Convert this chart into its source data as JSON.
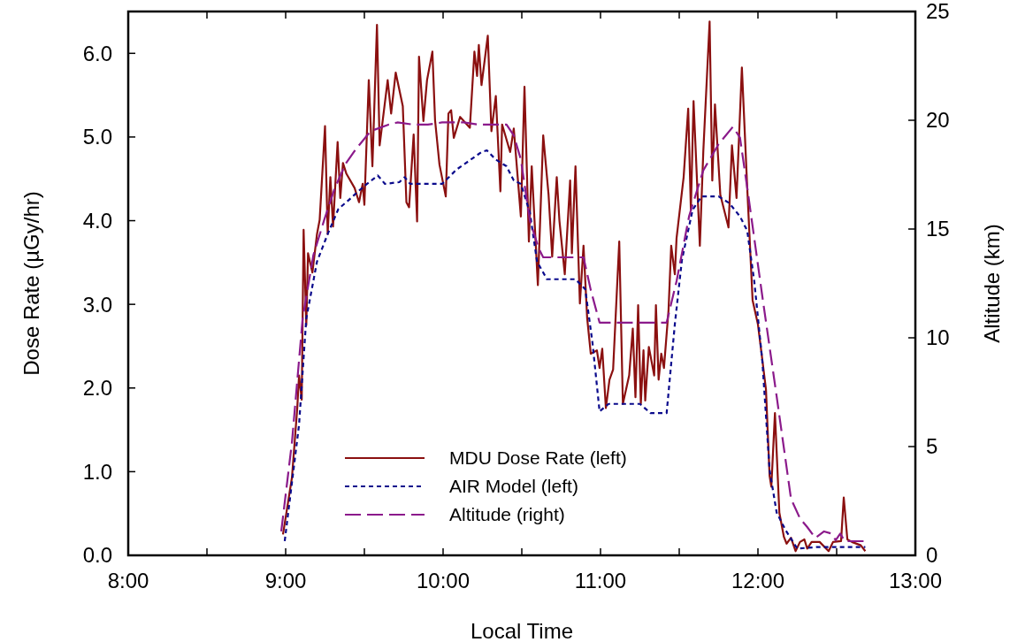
{
  "chart_data": {
    "type": "line",
    "xlabel": "Local Time",
    "ylabel": "Dose Rate (µGy/hr)",
    "y2label": "Altitude (km)",
    "xlim": [
      8,
      13
    ],
    "xticks": [
      {
        "value": 8,
        "label": "8:00"
      },
      {
        "value": 8.5,
        "label": null
      },
      {
        "value": 9,
        "label": "9:00"
      },
      {
        "value": 9.5,
        "label": null
      },
      {
        "value": 10,
        "label": "10:00"
      },
      {
        "value": 10.5,
        "label": null
      },
      {
        "value": 11,
        "label": "11:00"
      },
      {
        "value": 11.5,
        "label": null
      },
      {
        "value": 12,
        "label": "12:00"
      },
      {
        "value": 12.5,
        "label": null
      },
      {
        "value": 13,
        "label": "13:00"
      }
    ],
    "ylim": [
      0,
      6.5
    ],
    "yticks": [
      {
        "value": 0,
        "label": "0.0"
      },
      {
        "value": 1,
        "label": "1.0"
      },
      {
        "value": 2,
        "label": "2.0"
      },
      {
        "value": 3,
        "label": "3.0"
      },
      {
        "value": 4,
        "label": "4.0"
      },
      {
        "value": 5,
        "label": "5.0"
      },
      {
        "value": 6,
        "label": "6.0"
      }
    ],
    "y2lim": [
      0,
      25
    ],
    "y2ticks": [
      0,
      5,
      10,
      15,
      20,
      25
    ],
    "legend": "bottom",
    "grid": false,
    "marker": "none",
    "series": [
      {
        "name": "MDU Dose Rate (left)",
        "color": "#8b1010",
        "line_style": "solid",
        "x": [
          8.983,
          9.04,
          9.074,
          9.085,
          9.102,
          9.114,
          9.131,
          9.142,
          9.17,
          9.199,
          9.216,
          9.25,
          9.267,
          9.284,
          9.301,
          9.33,
          9.347,
          9.364,
          9.386,
          9.438,
          9.466,
          9.489,
          9.5,
          9.528,
          9.551,
          9.58,
          9.597,
          9.648,
          9.67,
          9.699,
          9.744,
          9.767,
          9.784,
          9.813,
          9.835,
          9.847,
          9.875,
          9.898,
          9.932,
          9.949,
          9.977,
          10.017,
          10.034,
          10.051,
          10.068,
          10.108,
          10.17,
          10.199,
          10.216,
          10.227,
          10.244,
          10.284,
          10.307,
          10.335,
          10.364,
          10.375,
          10.426,
          10.449,
          10.494,
          10.517,
          10.545,
          10.563,
          10.602,
          10.636,
          10.67,
          10.693,
          10.722,
          10.739,
          10.773,
          10.807,
          10.818,
          10.841,
          10.869,
          10.892,
          10.915,
          10.938,
          10.977,
          10.994,
          11.011,
          11.034,
          11.057,
          11.08,
          11.119,
          11.142,
          11.182,
          11.205,
          11.222,
          11.239,
          11.256,
          11.273,
          11.284,
          11.307,
          11.341,
          11.352,
          11.369,
          11.386,
          11.403,
          11.432,
          11.449,
          11.472,
          11.483,
          11.528,
          11.557,
          11.574,
          11.591,
          11.631,
          11.653,
          11.693,
          11.71,
          11.727,
          11.761,
          11.813,
          11.835,
          11.864,
          11.898,
          11.932,
          11.966,
          12,
          12.023,
          12.051,
          12.074,
          12.085,
          12.108,
          12.136,
          12.165,
          12.182,
          12.21,
          12.239,
          12.267,
          12.295,
          12.313,
          12.341,
          12.392,
          12.449,
          12.477,
          12.528,
          12.545,
          12.568,
          12.597,
          12.653,
          12.682
        ],
        "values": [
          0.25,
          0.93,
          1.77,
          2.15,
          1.86,
          3.89,
          2.75,
          3.61,
          3.38,
          3.84,
          4.01,
          5.13,
          3.84,
          4.52,
          3.93,
          4.94,
          4.27,
          4.69,
          4.56,
          4.39,
          4.22,
          4.44,
          4.19,
          5.68,
          4.65,
          6.34,
          4.9,
          5.68,
          5.28,
          5.77,
          5.37,
          4.22,
          4.16,
          5.03,
          3.99,
          5.96,
          5.19,
          5.68,
          6.02,
          5.2,
          4.67,
          4.29,
          5.28,
          5.32,
          4.99,
          5.24,
          5.11,
          6.02,
          5.73,
          6.1,
          5.62,
          6.21,
          5.07,
          5.49,
          4.35,
          5.15,
          4.82,
          5.1,
          4.05,
          5.6,
          3.75,
          4.65,
          3.23,
          5.02,
          4.31,
          3.57,
          4.52,
          4,
          3.36,
          4.48,
          3.61,
          4.65,
          3.01,
          3.7,
          2.84,
          2.41,
          2.45,
          2.24,
          2.47,
          1.76,
          2.1,
          2.22,
          3.75,
          1.81,
          2.15,
          2.71,
          1.89,
          2.99,
          1.81,
          2.45,
          1.85,
          2.49,
          2.15,
          2.99,
          2.1,
          2.41,
          2.24,
          2.93,
          3.7,
          3.36,
          3.79,
          4.52,
          5.34,
          4.13,
          5.43,
          3.7,
          4.83,
          6.38,
          4.48,
          5.39,
          4.31,
          3.92,
          4.9,
          4.27,
          5.83,
          4.39,
          3.05,
          2.76,
          2.41,
          1.98,
          0.95,
          0.82,
          1.7,
          0.51,
          0.22,
          0.14,
          0.21,
          0.05,
          0.16,
          0.19,
          0.08,
          0.16,
          0.16,
          0.05,
          0.16,
          0.17,
          0.69,
          0.19,
          0.16,
          0.12,
          0.05
        ]
      },
      {
        "name": "AIR Model (left)",
        "color": "#0a0a8c",
        "line_style": "dotted",
        "x": [
          8.994,
          9.085,
          9.131,
          9.199,
          9.267,
          9.335,
          9.403,
          9.46,
          9.517,
          9.585,
          9.631,
          9.722,
          9.756,
          9.79,
          9.994,
          10.085,
          10.176,
          10.244,
          10.278,
          10.335,
          10.403,
          10.449,
          10.494,
          10.551,
          10.597,
          10.642,
          10.659,
          10.841,
          10.903,
          10.949,
          10.994,
          11.051,
          11.142,
          11.25,
          11.318,
          11.42,
          11.472,
          11.517,
          11.585,
          11.642,
          11.75,
          11.818,
          11.886,
          11.932,
          11.977,
          12.028,
          12.074,
          12.119,
          12.176,
          12.25,
          12.381,
          12.568,
          12.682
        ],
        "values": [
          0.17,
          1.56,
          2.83,
          3.51,
          3.84,
          4.14,
          4.25,
          4.35,
          4.44,
          4.54,
          4.44,
          4.46,
          4.52,
          4.44,
          4.44,
          4.61,
          4.73,
          4.82,
          4.84,
          4.73,
          4.65,
          4.48,
          4.44,
          4.1,
          3.51,
          3.36,
          3.3,
          3.3,
          3.18,
          2.54,
          1.72,
          1.81,
          1.81,
          1.81,
          1.7,
          1.7,
          2.76,
          3.53,
          4.13,
          4.29,
          4.29,
          4.21,
          4.05,
          3.88,
          3.27,
          2.32,
          1.02,
          0.51,
          0.3,
          0.08,
          0.1,
          0.1,
          0.1
        ]
      },
      {
        "name": "Altitude (right)",
        "color": "#8b1a8b",
        "line_style": "dashed",
        "axis": "y2",
        "x": [
          8.972,
          9.04,
          9.108,
          9.176,
          9.244,
          9.313,
          9.381,
          9.449,
          9.54,
          9.653,
          9.71,
          9.813,
          9.903,
          9.994,
          10.131,
          10.222,
          10.403,
          10.449,
          10.494,
          10.551,
          10.608,
          10.636,
          10.892,
          10.938,
          10.994,
          11.42,
          11.483,
          11.563,
          11.653,
          11.75,
          11.841,
          11.886,
          11.932,
          12.028,
          12.119,
          12.21,
          12.267,
          12.313,
          12.364,
          12.42,
          12.466,
          12.494,
          12.523,
          12.551,
          12.676
        ],
        "values": [
          1.1,
          5.2,
          10.9,
          13.8,
          15.4,
          16.9,
          18,
          18.7,
          19.5,
          19.8,
          19.9,
          19.8,
          19.8,
          19.9,
          19.9,
          19.8,
          19.8,
          19.3,
          18.2,
          15.4,
          14.1,
          13.7,
          13.7,
          12.2,
          10.7,
          10.7,
          12.6,
          15.6,
          17.7,
          18.9,
          19.7,
          19.2,
          16.9,
          11.9,
          7.3,
          2.6,
          1.7,
          1.3,
          0.8,
          1.1,
          1,
          0.7,
          1,
          0.65,
          0.65
        ]
      }
    ]
  }
}
